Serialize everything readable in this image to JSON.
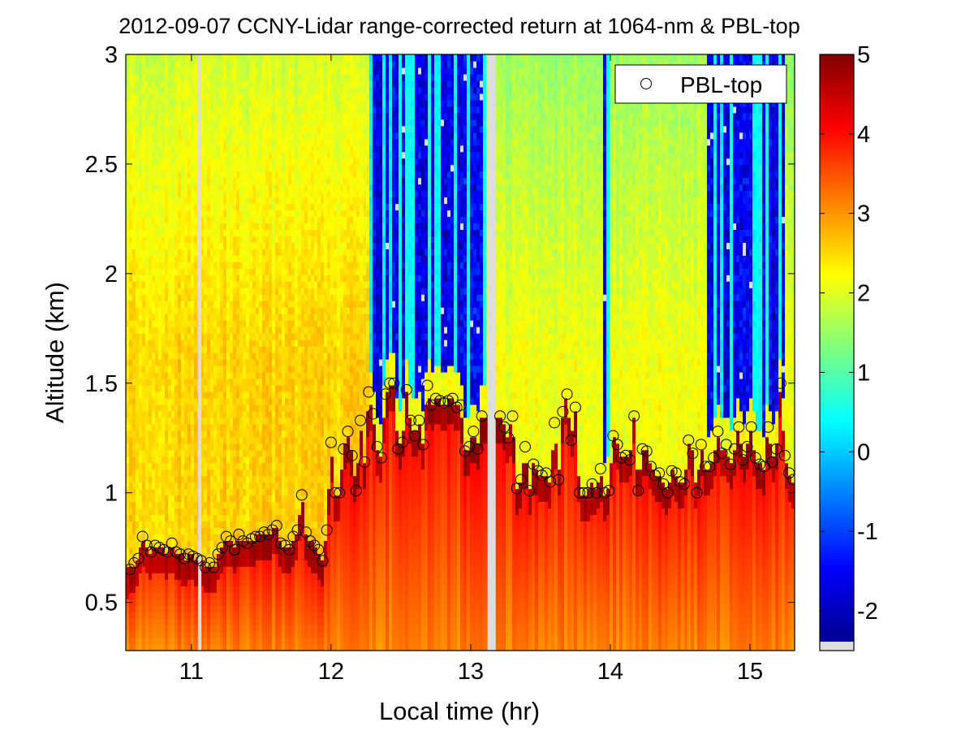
{
  "chart_data": {
    "type": "heatmap",
    "title": "2012-09-07 CCNY-Lidar range-corrected return at 1064-nm & PBL-top",
    "xlabel": "Local time (hr)",
    "ylabel": "Altitude (km)",
    "xlim": [
      10.53,
      15.32
    ],
    "ylim": [
      0.28,
      3.0
    ],
    "x_ticks": [
      11,
      12,
      13,
      14,
      15
    ],
    "x_tick_labels": [
      "11",
      "12",
      "13",
      "14",
      "15"
    ],
    "y_ticks": [
      0.5,
      1,
      1.5,
      2,
      2.5,
      3
    ],
    "y_tick_labels": [
      "0.5",
      "1",
      "1.5",
      "2",
      "2.5",
      "3"
    ],
    "colorbar": {
      "colormap": "jet",
      "clim": [
        -2.5,
        5
      ],
      "ticks": [
        -2,
        -1,
        0,
        1,
        2,
        3,
        4,
        5
      ],
      "tick_labels": [
        "-2",
        "-1",
        "0",
        "1",
        "2",
        "3",
        "4",
        "5"
      ]
    },
    "grid": false,
    "legend": {
      "position": "top-right",
      "entries": [
        "PBL-top"
      ]
    },
    "data_gaps_hr": [
      11.06,
      13.15
    ],
    "cloud_periods_hr": [
      [
        12.28,
        13.1
      ],
      [
        13.95,
        14.0
      ],
      [
        14.7,
        15.25
      ]
    ],
    "series": [
      {
        "name": "PBL-top",
        "marker": "open circle",
        "x": [
          10.56,
          10.59,
          10.62,
          10.65,
          10.68,
          10.71,
          10.74,
          10.77,
          10.8,
          10.83,
          10.86,
          10.89,
          10.92,
          10.95,
          10.98,
          11.01,
          11.04,
          11.07,
          11.1,
          11.13,
          11.16,
          11.19,
          11.22,
          11.25,
          11.28,
          11.31,
          11.34,
          11.37,
          11.4,
          11.43,
          11.46,
          11.49,
          11.52,
          11.55,
          11.58,
          11.61,
          11.64,
          11.67,
          11.7,
          11.73,
          11.76,
          11.79,
          11.82,
          11.85,
          11.88,
          11.91,
          11.94,
          11.97,
          12.0,
          12.03,
          12.06,
          12.09,
          12.12,
          12.15,
          12.18,
          12.21,
          12.24,
          12.27,
          12.3,
          12.33,
          12.36,
          12.39,
          12.42,
          12.45,
          12.48,
          12.51,
          12.54,
          12.57,
          12.6,
          12.63,
          12.66,
          12.69,
          12.72,
          12.75,
          12.78,
          12.81,
          12.84,
          12.87,
          12.9,
          12.93,
          12.96,
          12.99,
          13.02,
          13.05,
          13.08,
          13.21,
          13.24,
          13.27,
          13.3,
          13.33,
          13.36,
          13.39,
          13.42,
          13.45,
          13.48,
          13.51,
          13.54,
          13.57,
          13.6,
          13.63,
          13.66,
          13.69,
          13.72,
          13.75,
          13.78,
          13.81,
          13.84,
          13.87,
          13.9,
          13.93,
          13.96,
          13.99,
          14.02,
          14.05,
          14.08,
          14.11,
          14.14,
          14.17,
          14.2,
          14.23,
          14.26,
          14.29,
          14.32,
          14.35,
          14.38,
          14.41,
          14.44,
          14.47,
          14.5,
          14.53,
          14.56,
          14.59,
          14.62,
          14.65,
          14.68,
          14.71,
          14.74,
          14.77,
          14.8,
          14.83,
          14.86,
          14.89,
          14.92,
          14.95,
          14.98,
          15.01,
          15.04,
          15.07,
          15.1,
          15.13,
          15.16,
          15.19,
          15.22,
          15.25,
          15.28,
          15.31
        ],
        "y": [
          0.65,
          0.68,
          0.7,
          0.8,
          0.76,
          0.73,
          0.76,
          0.75,
          0.74,
          0.73,
          0.77,
          0.73,
          0.72,
          0.7,
          0.72,
          0.71,
          0.7,
          0.69,
          0.66,
          0.68,
          0.66,
          0.72,
          0.75,
          0.8,
          0.78,
          0.74,
          0.81,
          0.78,
          0.77,
          0.79,
          0.8,
          0.8,
          0.82,
          0.81,
          0.83,
          0.85,
          0.77,
          0.76,
          0.74,
          0.8,
          0.83,
          0.99,
          0.82,
          0.78,
          0.76,
          0.74,
          0.69,
          0.83,
          1.23,
          1.0,
          1.0,
          1.2,
          1.28,
          1.17,
          1.01,
          1.33,
          1.14,
          1.46,
          1.36,
          1.21,
          1.16,
          1.45,
          1.5,
          1.5,
          1.2,
          1.23,
          1.47,
          1.33,
          1.26,
          1.33,
          1.22,
          1.49,
          1.4,
          1.43,
          1.42,
          1.41,
          1.42,
          1.43,
          1.39,
          1.4,
          1.19,
          1.21,
          1.28,
          1.2,
          1.35,
          1.35,
          1.3,
          1.25,
          1.35,
          1.02,
          1.06,
          1.21,
          1.01,
          1.13,
          1.1,
          1.08,
          1.09,
          1.05,
          1.32,
          1.06,
          1.37,
          1.45,
          1.24,
          1.39,
          1.0,
          1.0,
          1.0,
          1.04,
          1.0,
          1.11,
          1.0,
          1.01,
          1.26,
          1.22,
          1.16,
          1.17,
          1.15,
          1.35,
          1.01,
          1.2,
          1.19,
          1.12,
          1.08,
          1.09,
          1.04,
          1.0,
          1.1,
          1.09,
          1.05,
          1.04,
          1.24,
          1.18,
          1.0,
          1.22,
          1.12,
          1.12,
          1.16,
          1.28,
          1.18,
          1.22,
          1.13,
          1.2,
          1.3,
          1.15,
          1.21,
          1.3,
          1.16,
          1.13,
          1.12,
          1.3,
          1.14,
          1.2,
          1.5,
          1.17,
          1.09,
          1.06
        ]
      }
    ]
  }
}
